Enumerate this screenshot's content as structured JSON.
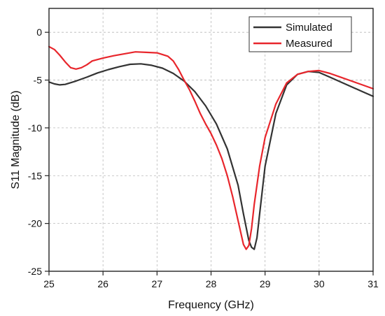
{
  "chart_data": {
    "type": "line",
    "xlabel": "Frequency (GHz)",
    "ylabel": "S11 Magnitude (dB)",
    "xlim": [
      25,
      31
    ],
    "ylim": [
      -25,
      2.5
    ],
    "xticks": [
      25,
      26,
      27,
      28,
      29,
      30,
      31
    ],
    "yticks": [
      0,
      -5,
      -10,
      -15,
      -20,
      -25
    ],
    "grid": true,
    "legend_position": "top-right",
    "series": [
      {
        "name": "Simulated",
        "color": "#333333",
        "x": [
          25.0,
          25.1,
          25.2,
          25.3,
          25.5,
          25.7,
          25.9,
          26.1,
          26.3,
          26.5,
          26.7,
          26.9,
          27.1,
          27.3,
          27.5,
          27.7,
          27.9,
          28.1,
          28.3,
          28.5,
          28.6,
          28.7,
          28.75,
          28.8,
          28.85,
          28.9,
          29.0,
          29.2,
          29.4,
          29.6,
          29.8,
          30.0,
          30.2,
          30.4,
          30.6,
          30.8,
          31.0
        ],
        "y": [
          -5.2,
          -5.4,
          -5.5,
          -5.45,
          -5.1,
          -4.7,
          -4.25,
          -3.9,
          -3.6,
          -3.35,
          -3.3,
          -3.45,
          -3.75,
          -4.3,
          -5.1,
          -6.2,
          -7.7,
          -9.6,
          -12.2,
          -16.0,
          -19.0,
          -21.8,
          -22.5,
          -22.7,
          -21.5,
          -19.0,
          -14.0,
          -8.5,
          -5.5,
          -4.4,
          -4.1,
          -4.2,
          -4.7,
          -5.2,
          -5.7,
          -6.2,
          -6.7
        ]
      },
      {
        "name": "Measured",
        "color": "#e8262c",
        "x": [
          25.0,
          25.1,
          25.2,
          25.3,
          25.4,
          25.5,
          25.6,
          25.7,
          25.8,
          26.0,
          26.2,
          26.4,
          26.6,
          26.8,
          27.0,
          27.2,
          27.3,
          27.4,
          27.5,
          27.6,
          27.7,
          27.8,
          27.9,
          28.0,
          28.1,
          28.2,
          28.3,
          28.4,
          28.5,
          28.6,
          28.65,
          28.7,
          28.75,
          28.8,
          28.9,
          29.0,
          29.2,
          29.4,
          29.6,
          29.8,
          30.0,
          30.2,
          30.4,
          30.6,
          30.8,
          31.0
        ],
        "y": [
          -1.5,
          -1.8,
          -2.4,
          -3.1,
          -3.7,
          -3.85,
          -3.7,
          -3.4,
          -3.0,
          -2.7,
          -2.45,
          -2.25,
          -2.05,
          -2.1,
          -2.15,
          -2.5,
          -3.0,
          -3.9,
          -5.0,
          -6.0,
          -7.2,
          -8.5,
          -9.6,
          -10.6,
          -11.8,
          -13.2,
          -15.0,
          -17.2,
          -19.7,
          -22.2,
          -22.7,
          -22.3,
          -20.5,
          -18.0,
          -14.0,
          -11.0,
          -7.5,
          -5.3,
          -4.4,
          -4.1,
          -4.0,
          -4.3,
          -4.7,
          -5.1,
          -5.5,
          -5.9
        ]
      }
    ]
  }
}
